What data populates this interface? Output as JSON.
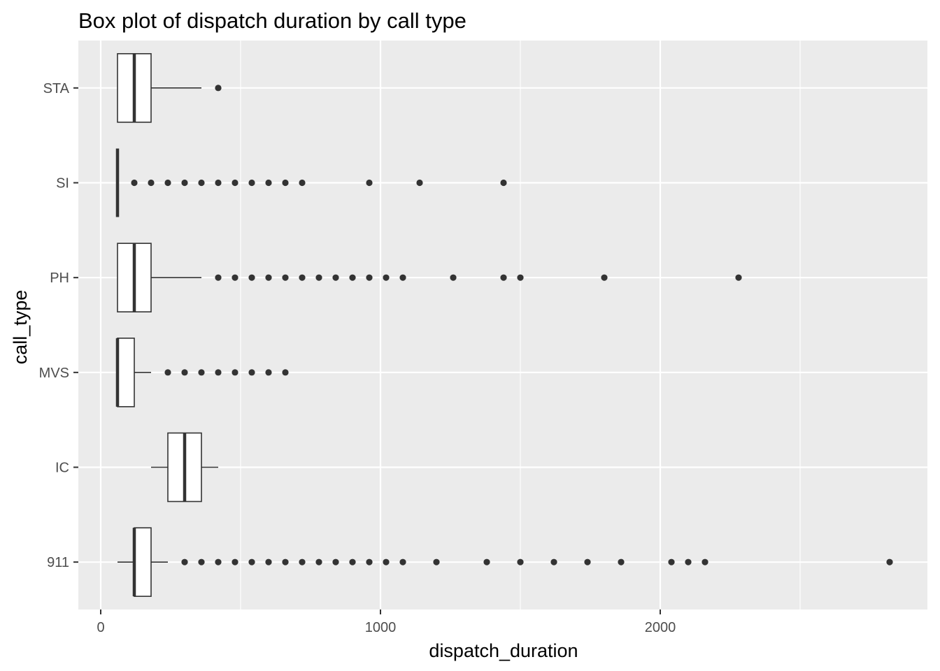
{
  "chart_data": {
    "type": "box",
    "orientation": "horizontal",
    "title": "Box plot of dispatch duration by call type",
    "xlabel": "dispatch_duration",
    "ylabel": "call_type",
    "xlim": [
      -80,
      2950
    ],
    "x_ticks": [
      0,
      1000,
      2000
    ],
    "x_minor_ticks": [
      500,
      1500,
      2500
    ],
    "grid": true,
    "categories": [
      "911",
      "IC",
      "MVS",
      "PH",
      "SI",
      "STA"
    ],
    "boxes": [
      {
        "category": "911",
        "whisker_low": 60,
        "q1": 120,
        "median": 120,
        "q3": 180,
        "whisker_high": 240,
        "outliers": [
          300,
          360,
          420,
          480,
          540,
          600,
          660,
          720,
          780,
          840,
          900,
          960,
          1020,
          1080,
          1200,
          1380,
          1500,
          1620,
          1740,
          1860,
          2040,
          2100,
          2160,
          2820
        ]
      },
      {
        "category": "IC",
        "whisker_low": 180,
        "q1": 240,
        "median": 300,
        "q3": 360,
        "whisker_high": 420,
        "outliers": []
      },
      {
        "category": "MVS",
        "whisker_low": 60,
        "q1": 60,
        "median": 60,
        "q3": 120,
        "whisker_high": 180,
        "outliers": [
          240,
          300,
          360,
          420,
          480,
          540,
          600,
          660
        ]
      },
      {
        "category": "PH",
        "whisker_low": 60,
        "q1": 60,
        "median": 120,
        "q3": 180,
        "whisker_high": 360,
        "outliers": [
          420,
          480,
          540,
          600,
          660,
          720,
          780,
          840,
          900,
          960,
          1020,
          1080,
          1260,
          1440,
          1500,
          1800,
          2280
        ]
      },
      {
        "category": "SI",
        "whisker_low": 60,
        "q1": 60,
        "median": 60,
        "q3": 60,
        "whisker_high": 60,
        "outliers": [
          120,
          180,
          240,
          300,
          360,
          420,
          480,
          540,
          600,
          660,
          720,
          960,
          1140,
          1440
        ]
      },
      {
        "category": "STA",
        "whisker_low": 60,
        "q1": 60,
        "median": 120,
        "q3": 180,
        "whisker_high": 360,
        "outliers": [
          420
        ]
      }
    ],
    "colors": {
      "panel_background": "#ebebeb",
      "grid": "#ffffff",
      "box_fill": "#ffffff",
      "box_line": "#333333",
      "point": "#333333",
      "tick": "#333333",
      "tick_label": "#4d4d4d"
    }
  }
}
